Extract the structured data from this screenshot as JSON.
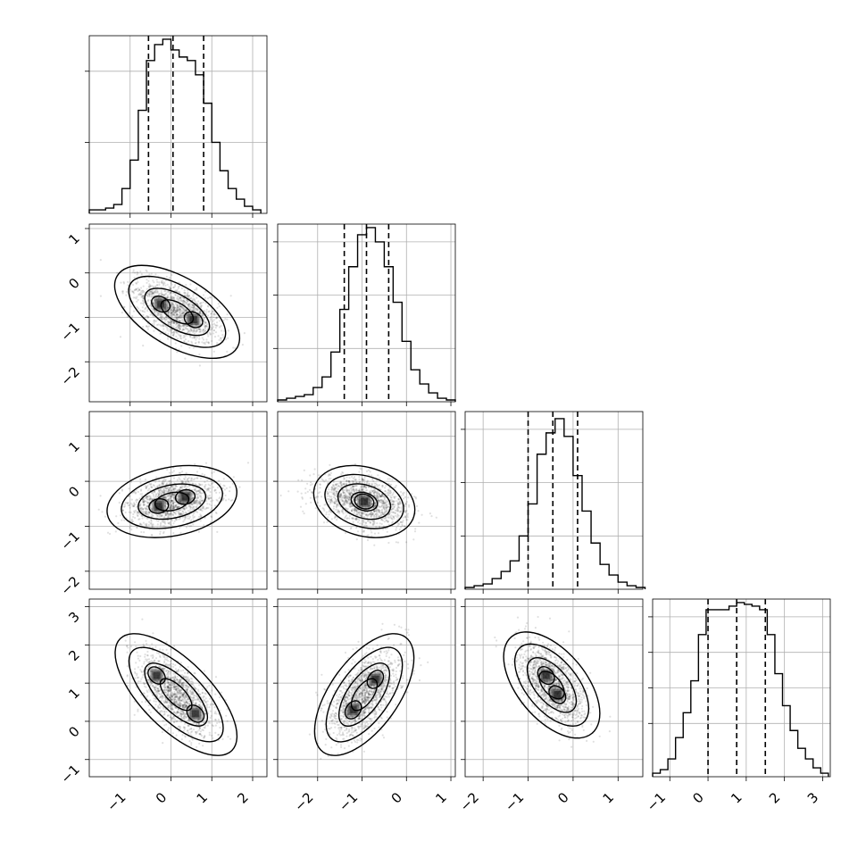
{
  "chart_data": {
    "type": "corner",
    "grid": true,
    "ndim": 4,
    "dims": [
      {
        "mean": 0.15,
        "std": 0.66,
        "shape": "bimodal",
        "range": [
          -2.0,
          2.35
        ],
        "ticks": [
          -1,
          0,
          1,
          2
        ],
        "quantiles": [
          -0.55,
          0.05,
          0.8
        ],
        "hist_bins": [
          -2.0,
          -1.8,
          -1.6,
          -1.4,
          -1.2,
          -1.0,
          -0.8,
          -0.6,
          -0.4,
          -0.2,
          0.0,
          0.2,
          0.4,
          0.6,
          0.8,
          1.0,
          1.2,
          1.4,
          1.6,
          1.8,
          2.0,
          2.2
        ],
        "hist_counts": [
          2,
          2,
          3,
          5,
          14,
          30,
          58,
          86,
          95,
          98,
          92,
          88,
          86,
          78,
          62,
          40,
          24,
          14,
          8,
          4,
          2
        ],
        "hist_ylim": [
          0,
          100
        ],
        "hist_yticks": [
          40,
          80
        ]
      },
      {
        "mean": -0.9,
        "std": 0.6,
        "shape": "normal",
        "range": [
          -2.9,
          1.1
        ],
        "ticks": [
          -2,
          -1,
          0,
          1
        ],
        "quantiles": [
          -1.4,
          -0.9,
          -0.4
        ],
        "hist_bins": [
          -2.9,
          -2.7,
          -2.5,
          -2.3,
          -2.1,
          -1.9,
          -1.7,
          -1.5,
          -1.3,
          -1.1,
          -0.9,
          -0.7,
          -0.5,
          -0.3,
          -0.1,
          0.1,
          0.3,
          0.5,
          0.7,
          0.9,
          1.1
        ],
        "hist_counts": [
          1,
          2,
          3,
          4,
          8,
          14,
          28,
          52,
          76,
          94,
          98,
          90,
          76,
          56,
          34,
          18,
          10,
          5,
          2,
          1
        ],
        "hist_ylim": [
          0,
          100
        ],
        "hist_yticks": [
          30,
          60,
          90
        ]
      },
      {
        "mean": -0.45,
        "std": 0.55,
        "shape": "normal",
        "range": [
          -2.4,
          1.55
        ],
        "ticks": [
          -2,
          -1,
          0,
          1
        ],
        "quantiles": [
          -1.0,
          -0.45,
          0.1
        ],
        "hist_bins": [
          -2.4,
          -2.2,
          -2.0,
          -1.8,
          -1.6,
          -1.4,
          -1.2,
          -1.0,
          -0.8,
          -0.6,
          -0.4,
          -0.2,
          0.0,
          0.2,
          0.4,
          0.6,
          0.8,
          1.0,
          1.2,
          1.4,
          1.6
        ],
        "hist_counts": [
          1,
          2,
          3,
          6,
          10,
          16,
          30,
          48,
          76,
          88,
          96,
          86,
          64,
          44,
          26,
          14,
          8,
          4,
          2,
          1
        ],
        "hist_ylim": [
          0,
          100
        ],
        "hist_yticks": [
          30,
          60,
          90
        ]
      },
      {
        "mean": 0.75,
        "std": 0.75,
        "shape": "bimodal",
        "range": [
          -1.45,
          3.2
        ],
        "ticks": [
          -1,
          0,
          1,
          2,
          3
        ],
        "quantiles": [
          0.0,
          0.75,
          1.5
        ],
        "hist_bins": [
          -1.45,
          -1.25,
          -1.05,
          -0.85,
          -0.65,
          -0.45,
          -0.25,
          -0.05,
          0.15,
          0.35,
          0.55,
          0.75,
          0.95,
          1.15,
          1.35,
          1.55,
          1.75,
          1.95,
          2.15,
          2.35,
          2.55,
          2.75,
          2.95,
          3.15
        ],
        "hist_counts": [
          2,
          4,
          10,
          22,
          36,
          54,
          80,
          94,
          94,
          94,
          96,
          98,
          97,
          96,
          94,
          80,
          58,
          40,
          26,
          16,
          10,
          5,
          2
        ],
        "hist_ylim": [
          0,
          100
        ],
        "hist_yticks": [
          30,
          50,
          70,
          90
        ]
      }
    ],
    "pairs": [
      {
        "row": 1,
        "col": 0,
        "centers": [
          [
            -0.25,
            -0.7
          ],
          [
            0.55,
            -1.05
          ]
        ],
        "orient": [
          1,
          -0.6
        ]
      },
      {
        "row": 2,
        "col": 0,
        "centers": [
          [
            -0.3,
            -0.55
          ],
          [
            0.35,
            -0.35
          ]
        ],
        "orient": [
          1,
          0.2
        ]
      },
      {
        "row": 2,
        "col": 1,
        "centers": [
          [
            -0.95,
            -0.45
          ]
        ],
        "orient": [
          1,
          -0.3
        ]
      },
      {
        "row": 3,
        "col": 0,
        "centers": [
          [
            -0.35,
            1.2
          ],
          [
            0.6,
            0.2
          ]
        ],
        "orient": [
          1,
          -1.0
        ]
      },
      {
        "row": 3,
        "col": 1,
        "centers": [
          [
            -1.2,
            0.3
          ],
          [
            -0.7,
            1.1
          ]
        ],
        "orient": [
          1,
          1.4
        ]
      },
      {
        "row": 3,
        "col": 2,
        "centers": [
          [
            -0.6,
            1.2
          ],
          [
            -0.35,
            0.7
          ]
        ],
        "orient": [
          1,
          -1.2
        ]
      }
    ]
  }
}
